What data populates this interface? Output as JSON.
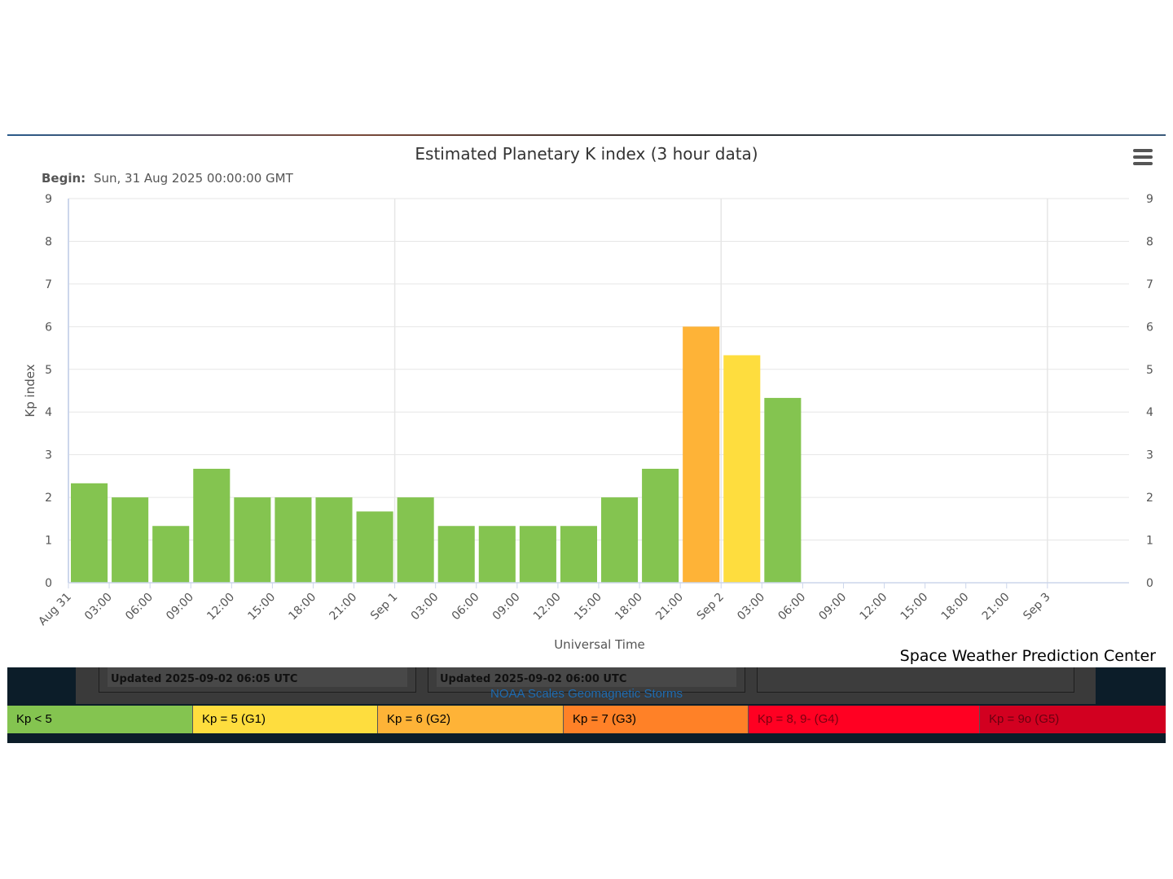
{
  "chart_data": {
    "type": "bar",
    "title": "Estimated Planetary K index (3 hour data)",
    "subtitle_label": "Begin:",
    "subtitle_value": "Sun, 31 Aug 2025 00:00:00 GMT",
    "ylabel": "Kp index",
    "xlabel": "Universal Time",
    "ylim": [
      0,
      9
    ],
    "yticks": [
      0,
      1,
      2,
      3,
      4,
      5,
      6,
      7,
      8,
      9
    ],
    "xlim": [
      "2025-08-31T00:00Z",
      "2025-09-03T06:00Z"
    ],
    "xticks": [
      "Aug 31",
      "03:00",
      "06:00",
      "09:00",
      "12:00",
      "15:00",
      "18:00",
      "21:00",
      "Sep 1",
      "03:00",
      "06:00",
      "09:00",
      "12:00",
      "15:00",
      "18:00",
      "21:00",
      "Sep 2",
      "03:00",
      "06:00",
      "09:00",
      "12:00",
      "15:00",
      "18:00",
      "21:00",
      "Sep 3"
    ],
    "grid": true,
    "bars": [
      {
        "time": "2025-08-31T00:00Z",
        "value": 2.33,
        "color": "#84c450"
      },
      {
        "time": "2025-08-31T03:00Z",
        "value": 2.0,
        "color": "#84c450"
      },
      {
        "time": "2025-08-31T06:00Z",
        "value": 1.33,
        "color": "#84c450"
      },
      {
        "time": "2025-08-31T09:00Z",
        "value": 2.67,
        "color": "#84c450"
      },
      {
        "time": "2025-08-31T12:00Z",
        "value": 2.0,
        "color": "#84c450"
      },
      {
        "time": "2025-08-31T15:00Z",
        "value": 2.0,
        "color": "#84c450"
      },
      {
        "time": "2025-08-31T18:00Z",
        "value": 2.0,
        "color": "#84c450"
      },
      {
        "time": "2025-08-31T21:00Z",
        "value": 1.67,
        "color": "#84c450"
      },
      {
        "time": "2025-09-01T00:00Z",
        "value": 2.0,
        "color": "#84c450"
      },
      {
        "time": "2025-09-01T03:00Z",
        "value": 1.33,
        "color": "#84c450"
      },
      {
        "time": "2025-09-01T06:00Z",
        "value": 1.33,
        "color": "#84c450"
      },
      {
        "time": "2025-09-01T09:00Z",
        "value": 1.33,
        "color": "#84c450"
      },
      {
        "time": "2025-09-01T12:00Z",
        "value": 1.33,
        "color": "#84c450"
      },
      {
        "time": "2025-09-01T15:00Z",
        "value": 2.0,
        "color": "#84c450"
      },
      {
        "time": "2025-09-01T18:00Z",
        "value": 2.67,
        "color": "#84c450"
      },
      {
        "time": "2025-09-01T21:00Z",
        "value": 6.0,
        "color": "#feb337"
      },
      {
        "time": "2025-09-02T00:00Z",
        "value": 5.33,
        "color": "#fedd3e"
      },
      {
        "time": "2025-09-02T03:00Z",
        "value": 4.33,
        "color": "#84c450"
      }
    ]
  },
  "credit": "Space Weather Prediction Center",
  "background_panels": {
    "updated_left": "Updated 2025-09-02 06:05 UTC",
    "updated_middle": "Updated 2025-09-02 06:00 UTC"
  },
  "noaa_link": "NOAA Scales Geomagnetic Storms",
  "legend": [
    {
      "label": "Kp < 5",
      "color": "#84c450",
      "text_color": "#000000"
    },
    {
      "label": "Kp = 5 (G1)",
      "color": "#fedd3e",
      "text_color": "#000000"
    },
    {
      "label": "Kp = 6 (G2)",
      "color": "#feb337",
      "text_color": "#000000"
    },
    {
      "label": "Kp = 7 (G3)",
      "color": "#ff8127",
      "text_color": "#000000"
    },
    {
      "label": "Kp = 8, 9- (G4)",
      "color": "#ff0022",
      "text_color": "#7a0010"
    },
    {
      "label": "Kp = 9o (G5)",
      "color": "#d20020",
      "text_color": "#6a0010"
    }
  ],
  "menu_icon": "hamburger-menu-icon"
}
